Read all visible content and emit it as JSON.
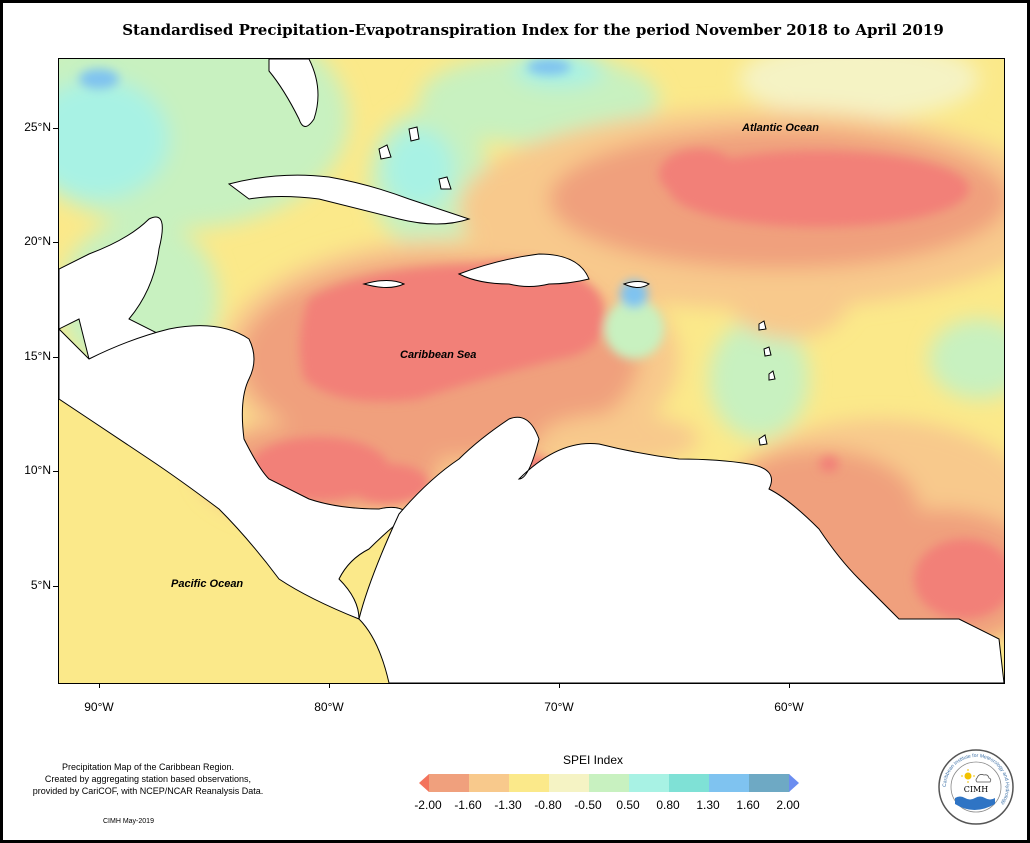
{
  "title": "Standardised Precipitation-Evapotranspiration Index for the period November 2018 to April 2019",
  "labels": {
    "atlantic": "Atlantic Ocean",
    "caribbean": "Caribbean Sea",
    "pacific": "Pacific Ocean"
  },
  "lat_axis": [
    "25°N",
    "20°N",
    "15°N",
    "10°N",
    "5°N"
  ],
  "lon_axis": [
    "90°W",
    "80°W",
    "70°W",
    "60°W"
  ],
  "legend": {
    "title": "SPEI Index",
    "ticks": [
      "-2.00",
      "-1.60",
      "-1.30",
      "-0.80",
      "-0.50",
      "0.50",
      "0.80",
      "1.30",
      "1.60",
      "2.00"
    ],
    "colors": [
      "#f3735c",
      "#f0a07d",
      "#f8c98c",
      "#fbe98a",
      "#f5f3c4",
      "#c8f1c0",
      "#a8f2e4",
      "#7fe1d6",
      "#7fc3f0",
      "#6ea9c4",
      "#6b8df0"
    ]
  },
  "note": {
    "line1": "Precipitation Map of the Caribbean Region.",
    "line2": "Created by aggregating station based observations,",
    "line3": "provided by CariCOF, with NCEP/NCAR Reanalysis Data."
  },
  "credit": "CIMH May-2019",
  "logo": {
    "ring_text": "Caribbean Institute for Meteorology and Hydrology",
    "center_text": "CIMH"
  }
}
